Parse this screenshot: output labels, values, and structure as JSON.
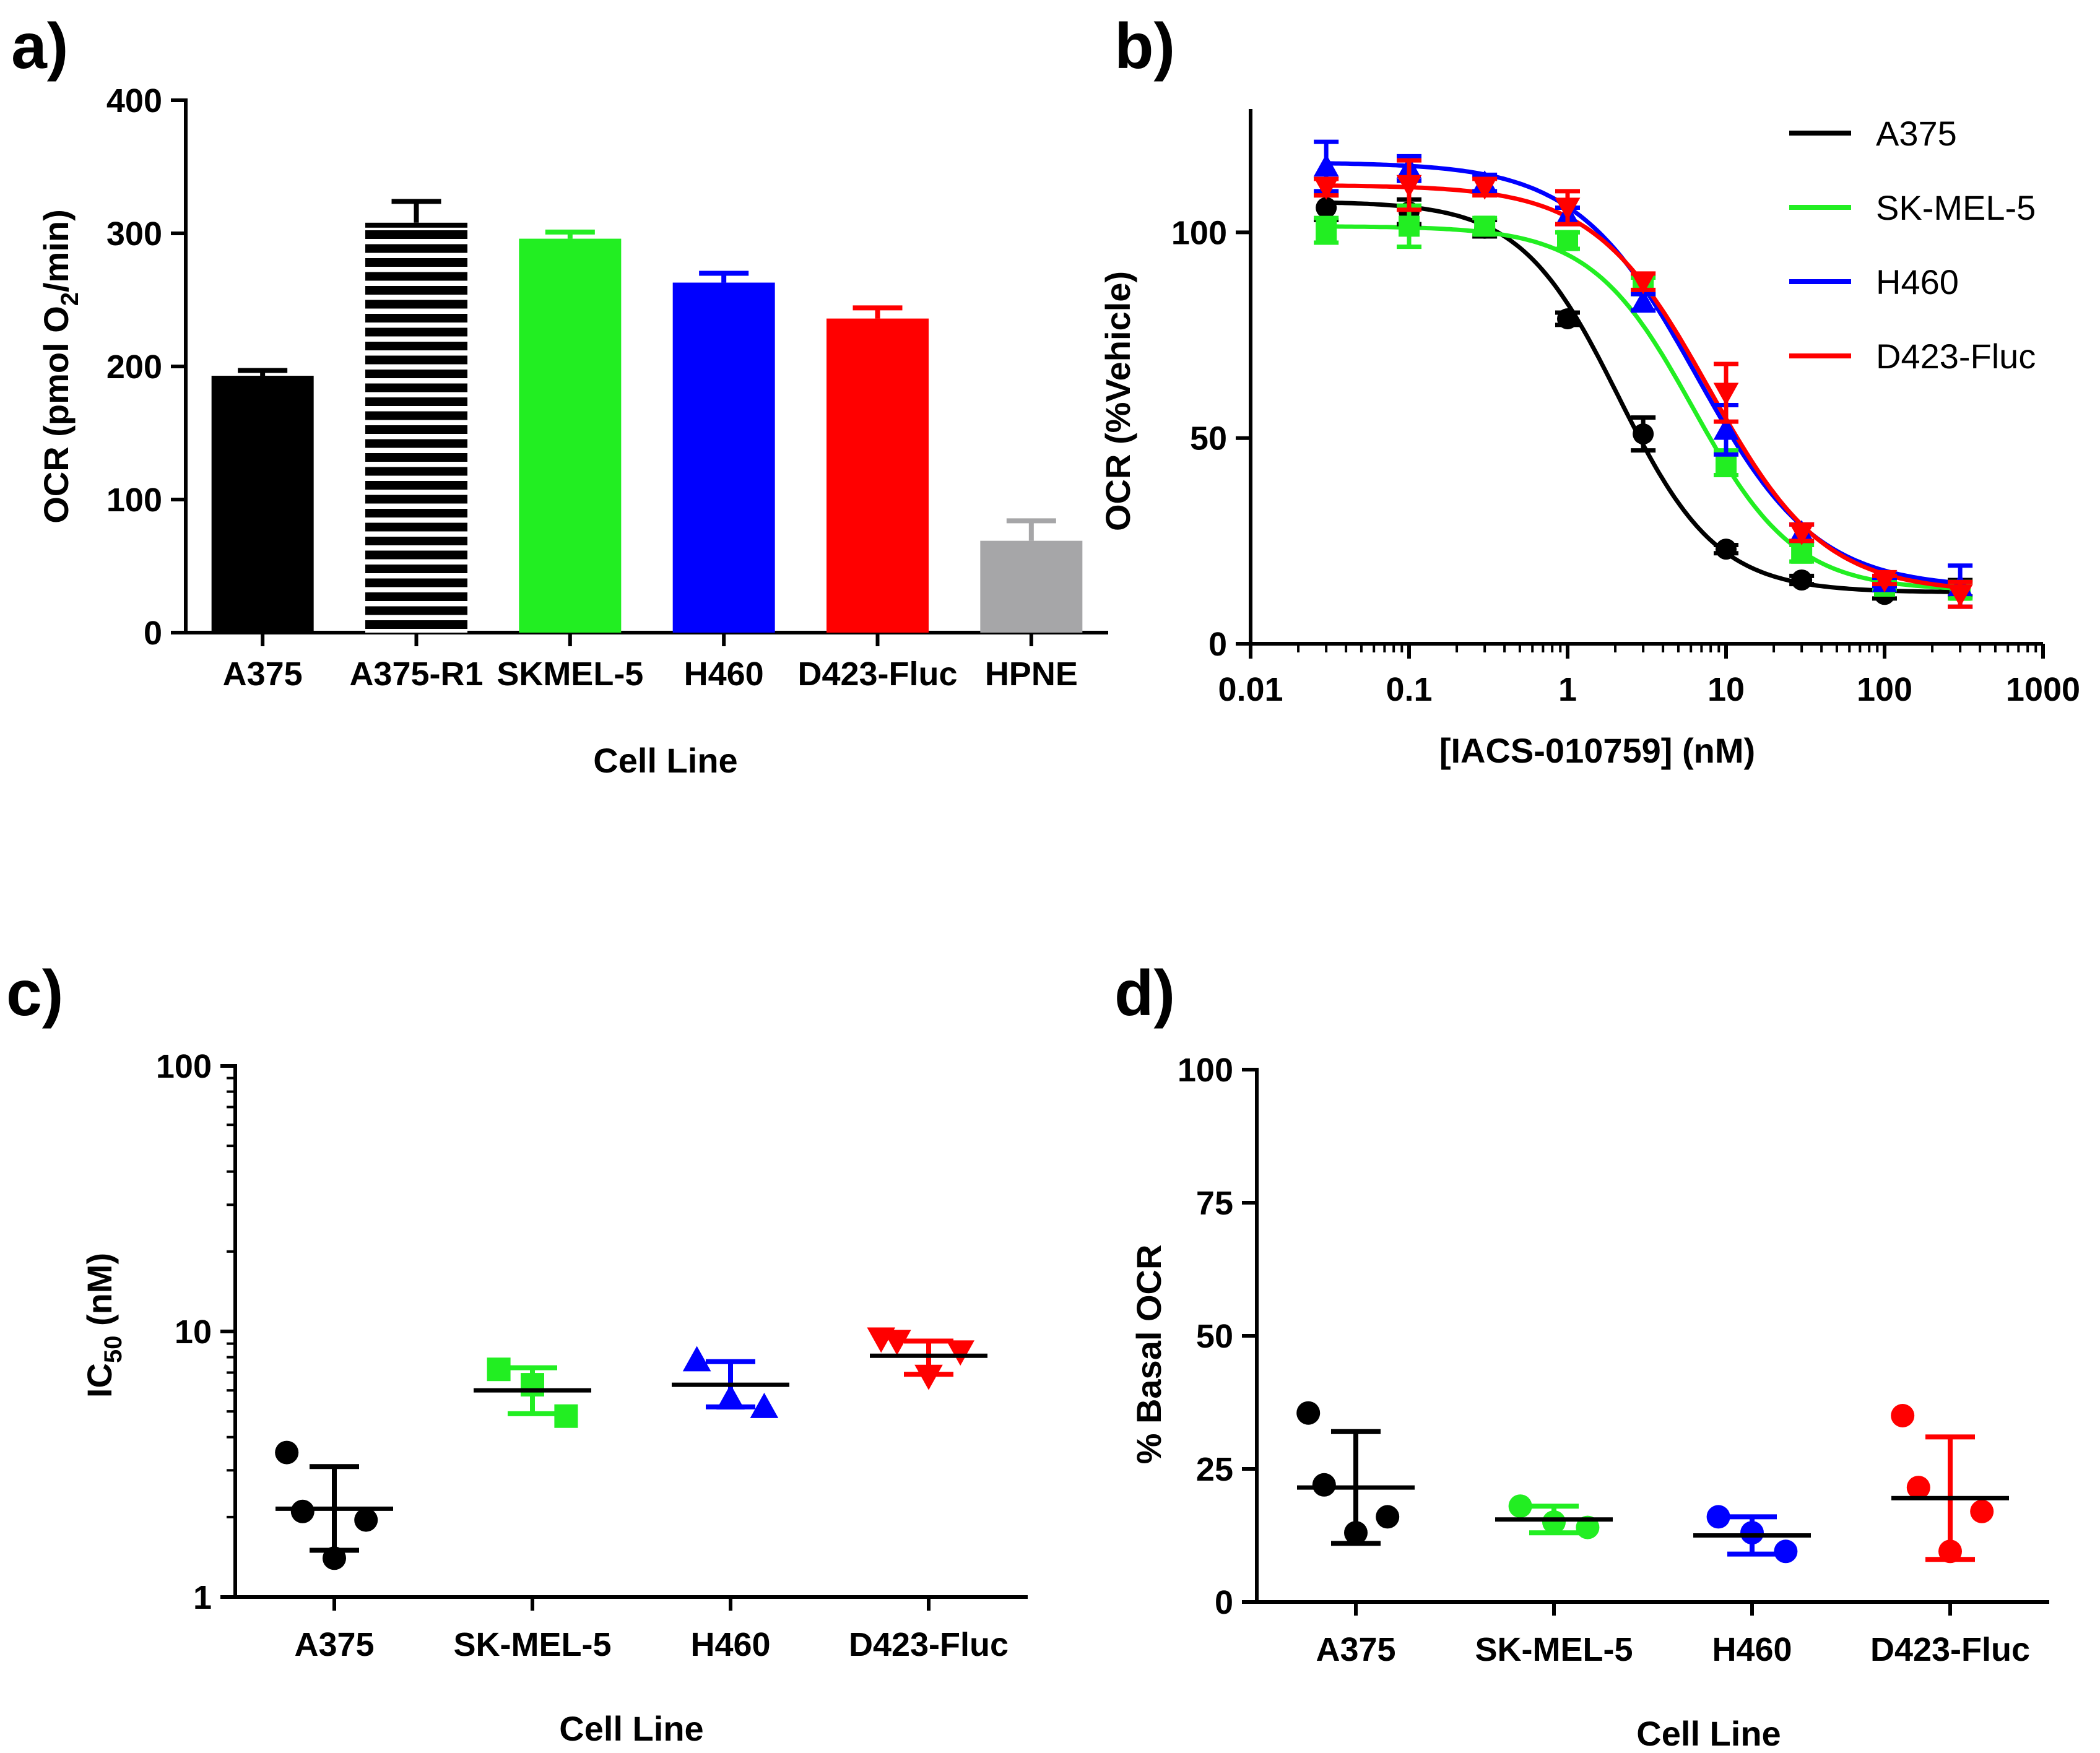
{
  "figure": {
    "panel_labels": [
      "a)",
      "b)",
      "c)",
      "d)"
    ]
  },
  "chart_data": [
    {
      "panel": "a)",
      "type": "bar",
      "title": "",
      "xlabel": "Cell Line",
      "ylabel_parts": [
        "OCR (pmol  O",
        "2",
        "/min)"
      ],
      "ylim": [
        0,
        400
      ],
      "yticks": [
        0,
        100,
        200,
        300,
        400
      ],
      "categories": [
        "A375",
        "A375-R1",
        "SKMEL-5",
        "H460",
        "D423-Fluc",
        "HPNE"
      ],
      "values": [
        193,
        308,
        296,
        263,
        236,
        69
      ],
      "errors": [
        4,
        16,
        5,
        7,
        8,
        15
      ],
      "colors": [
        "#000000",
        "#000000",
        "#22ee22",
        "#0000ff",
        "#ff0000",
        "#a6a6a8"
      ],
      "patterns": [
        "solid",
        "horizontal-stripes",
        "solid",
        "solid",
        "solid",
        "solid"
      ]
    },
    {
      "panel": "b)",
      "type": "line",
      "title": "",
      "xlabel": "[IACS-010759]  (nM)",
      "ylabel": "OCR (%Vehicle)",
      "xscale": "log",
      "xlim": [
        0.01,
        1000
      ],
      "ylim": [
        0,
        130
      ],
      "xticks": [
        0.01,
        0.1,
        1,
        10,
        100,
        1000
      ],
      "xtick_labels": [
        "0.01",
        "0.1",
        "1",
        "10",
        "100",
        "1000"
      ],
      "yticks": [
        0,
        50,
        100
      ],
      "x": [
        0.03,
        0.1,
        0.3,
        1,
        3,
        10,
        30,
        100,
        300
      ],
      "legend_position": "top-right",
      "series": [
        {
          "name": "A375",
          "color": "#000000",
          "marker": "circle",
          "values": [
            106,
            105,
            101,
            79,
            51,
            23,
            15.5,
            12,
            13.5
          ],
          "errors": [
            3,
            3,
            2,
            1.5,
            4,
            1,
            1,
            1,
            2
          ],
          "fit": {
            "top": 107.5,
            "bottom": 12.5,
            "ic50": 2.1,
            "hill": 1.4
          }
        },
        {
          "name": "SK-MEL-5",
          "color": "#22ee22",
          "marker": "square",
          "values": [
            100.5,
            101.5,
            101.5,
            98,
            87,
            44,
            22,
            14,
            13
          ],
          "errors": [
            3,
            5,
            2,
            2,
            2,
            3,
            2,
            1,
            2
          ],
          "fit": {
            "top": 101.5,
            "bottom": 13,
            "ic50": 6.2,
            "hill": 1.35
          }
        },
        {
          "name": "H460",
          "color": "#0000ff",
          "marker": "triangle-up",
          "values": [
            116,
            115.5,
            112,
            104,
            83,
            52,
            27,
            15,
            14
          ],
          "errors": [
            6,
            3,
            2,
            2,
            2,
            6,
            2,
            1,
            5
          ],
          "fit": {
            "top": 117,
            "bottom": 13.5,
            "ic50": 6.5,
            "hill": 1.15
          }
        },
        {
          "name": "D423-Fluc",
          "color": "#ff0000",
          "marker": "triangle-down",
          "values": [
            111,
            111.5,
            111,
            106,
            88,
            61,
            27,
            15.5,
            12
          ],
          "errors": [
            2,
            6,
            2,
            4,
            2,
            7,
            2,
            1,
            3
          ],
          "fit": {
            "top": 111.5,
            "bottom": 12.5,
            "ic50": 7.8,
            "hill": 1.2
          }
        }
      ]
    },
    {
      "panel": "c)",
      "type": "scatter",
      "title": "",
      "xlabel": "Cell Line",
      "ylabel_parts": [
        "IC",
        "50",
        " (nM)"
      ],
      "yscale": "log",
      "ylim": [
        1,
        100
      ],
      "yticks": [
        1,
        10,
        100
      ],
      "categories": [
        "A375",
        "SK-MEL-5",
        "H460",
        "D423-Fluc"
      ],
      "series": [
        {
          "name": "A375",
          "color": "#000000",
          "marker": "circle",
          "points": [
            3.5,
            2.1,
            1.95,
            1.4
          ],
          "mean": 2.15,
          "sd_range": [
            1.5,
            3.1
          ]
        },
        {
          "name": "SK-MEL-5",
          "color": "#22ee22",
          "marker": "square",
          "points": [
            7.2,
            6.3,
            4.8
          ],
          "mean": 6.0,
          "sd_range": [
            4.9,
            7.3
          ]
        },
        {
          "name": "H460",
          "color": "#0000ff",
          "marker": "triangle-up",
          "points": [
            7.8,
            5.6,
            5.2
          ],
          "mean": 6.3,
          "sd_range": [
            5.2,
            7.7
          ]
        },
        {
          "name": "D423-Fluc",
          "color": "#ff0000",
          "marker": "triangle-down",
          "points": [
            9.4,
            9.2,
            8.4,
            6.8
          ],
          "mean": 8.1,
          "sd_range": [
            6.9,
            9.2
          ]
        }
      ]
    },
    {
      "panel": "d)",
      "type": "scatter",
      "title": "",
      "xlabel": "Cell  Line",
      "ylabel": "% Basal OCR",
      "ylim": [
        0,
        100
      ],
      "yticks": [
        0,
        25,
        50,
        75,
        100
      ],
      "categories": [
        "A375",
        "SK-MEL-5",
        "H460",
        "D423-Fluc"
      ],
      "series": [
        {
          "name": "A375",
          "color": "#000000",
          "marker": "circle",
          "points": [
            35.5,
            22,
            16,
            13
          ],
          "mean": 21.5,
          "sd_range": [
            11,
            32
          ]
        },
        {
          "name": "SK-MEL-5",
          "color": "#22ee22",
          "marker": "circle",
          "points": [
            18,
            15,
            14
          ],
          "mean": 15.5,
          "sd_range": [
            13,
            18
          ]
        },
        {
          "name": "H460",
          "color": "#0000ff",
          "marker": "circle",
          "points": [
            16,
            13,
            9.5
          ],
          "mean": 12.5,
          "sd_range": [
            9,
            16
          ]
        },
        {
          "name": "D423-Fluc",
          "color": "#ff0000",
          "marker": "circle",
          "points": [
            35,
            21.5,
            17,
            9.5
          ],
          "mean": 19.5,
          "sd_range": [
            8,
            31
          ]
        }
      ]
    }
  ]
}
